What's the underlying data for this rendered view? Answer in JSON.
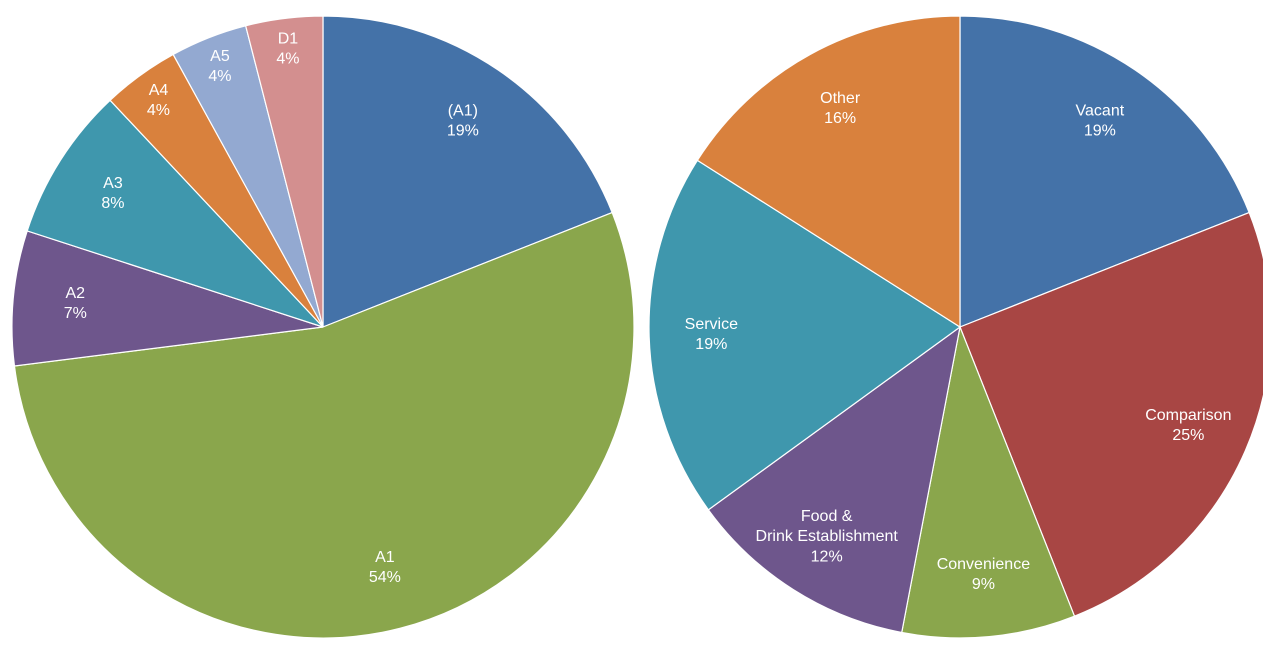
{
  "chart_data": [
    {
      "type": "pie",
      "categories": [
        "(A1)",
        "A1",
        "A2",
        "A3",
        "A4",
        "A5",
        "D1"
      ],
      "values": [
        19,
        54,
        7,
        8,
        4,
        4,
        4
      ],
      "value_labels": [
        "19%",
        "54%",
        "7%",
        "8%",
        "4%",
        "4%",
        "4%"
      ],
      "colors": [
        "#4472a8",
        "#8aa64c",
        "#6e568c",
        "#3f97ad",
        "#d9813d",
        "#93a9d1",
        "#d38f8f"
      ]
    },
    {
      "type": "pie",
      "categories": [
        "Vacant",
        "Comparison",
        "Convenience",
        "Food & Drink Establishment",
        "Service",
        "Other"
      ],
      "values": [
        19,
        25,
        9,
        12,
        19,
        16
      ],
      "value_labels": [
        "19%",
        "25%",
        "9%",
        "12%",
        "19%",
        "16%"
      ],
      "colors": [
        "#4472a8",
        "#a84644",
        "#8aa64c",
        "#6e568c",
        "#3f97ad",
        "#d9813d"
      ]
    }
  ]
}
